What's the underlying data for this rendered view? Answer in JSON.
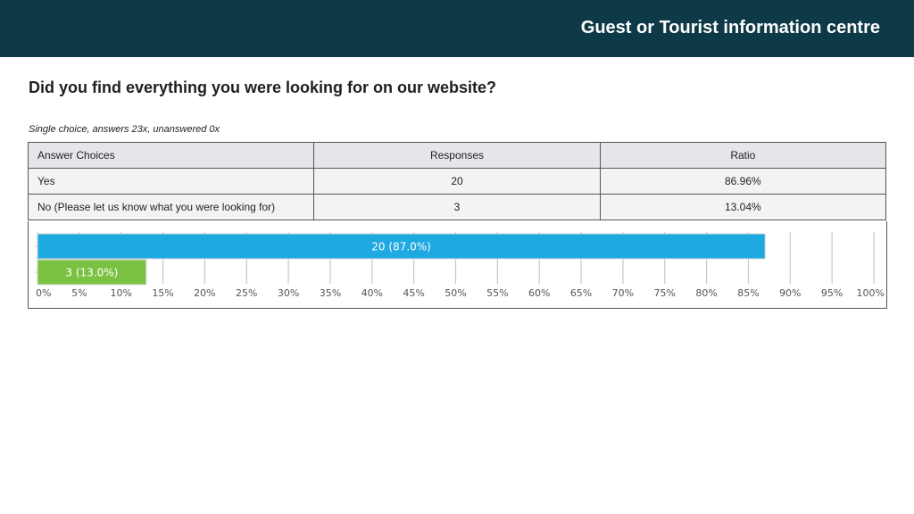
{
  "header": {
    "title": "Guest or Tourist information centre"
  },
  "question": {
    "title": "Did you find everything you were looking for on our website?"
  },
  "meta": {
    "text": "Single choice, answers 23x, unanswered 0x"
  },
  "table": {
    "headers": [
      "Answer Choices",
      "Responses",
      "Ratio"
    ],
    "rows": [
      {
        "choice": "Yes",
        "responses": "20",
        "ratio": "86.96%"
      },
      {
        "choice": "No (Please let us know what you were looking for)",
        "responses": "3",
        "ratio": "13.04%"
      }
    ]
  },
  "chart_data": {
    "type": "bar",
    "orientation": "horizontal",
    "categories": [
      "Yes",
      "No (Please let us know what you were looking for)"
    ],
    "values": [
      87.0,
      13.0
    ],
    "data_labels": [
      "20 (87.0%)",
      "3 (13.0%)"
    ],
    "colors": [
      "#1fa9e1",
      "#7cc242"
    ],
    "label_colors": [
      "#ffffff",
      "#ffffff"
    ],
    "xlim": [
      0,
      100
    ],
    "xticks": [
      "0%",
      "5%",
      "10%",
      "15%",
      "20%",
      "25%",
      "30%",
      "35%",
      "40%",
      "45%",
      "50%",
      "55%",
      "60%",
      "65%",
      "70%",
      "75%",
      "80%",
      "85%",
      "90%",
      "95%",
      "100%"
    ],
    "grid": true,
    "grid_color": "#c8c8c8",
    "tick_label_color": "#555555",
    "title": "",
    "xlabel": "",
    "ylabel": ""
  }
}
